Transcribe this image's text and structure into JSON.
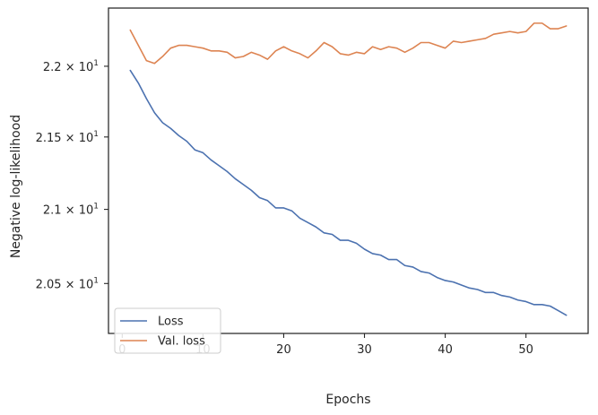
{
  "chart_data": {
    "type": "line",
    "title": "",
    "xlabel": "Epochs",
    "ylabel": "Negative log-likelihood",
    "y_scale": "log",
    "xlim": [
      -1.7,
      57.7
    ],
    "ylim": [
      20.17,
      22.42
    ],
    "x_ticks": [
      {
        "value": 0,
        "label": "0"
      },
      {
        "value": 10,
        "label": "10"
      },
      {
        "value": 20,
        "label": "20"
      },
      {
        "value": 30,
        "label": "30"
      },
      {
        "value": 40,
        "label": "40"
      },
      {
        "value": 50,
        "label": "50"
      }
    ],
    "y_ticks": [
      {
        "value": 22.0,
        "base": "2.2",
        "exp": "1"
      },
      {
        "value": 21.5,
        "base": "2.15",
        "exp": "1"
      },
      {
        "value": 21.0,
        "base": "2.1",
        "exp": "1"
      },
      {
        "value": 20.5,
        "base": "2.05",
        "exp": "1"
      }
    ],
    "tick_times_sign": "×",
    "tick_base_text": "10",
    "grid": false,
    "legend_position": "lower-left",
    "x": [
      1,
      2,
      3,
      4,
      5,
      6,
      7,
      8,
      9,
      10,
      11,
      12,
      13,
      14,
      15,
      16,
      17,
      18,
      19,
      20,
      21,
      22,
      23,
      24,
      25,
      26,
      27,
      28,
      29,
      30,
      31,
      32,
      33,
      34,
      35,
      36,
      37,
      38,
      39,
      40,
      41,
      42,
      43,
      44,
      45,
      46,
      47,
      48,
      49,
      50,
      51,
      52,
      53,
      54,
      55
    ],
    "series": [
      {
        "name": "Loss",
        "color": "#4c72b0",
        "values": [
          21.97,
          21.88,
          21.77,
          21.67,
          21.6,
          21.56,
          21.51,
          21.47,
          21.41,
          21.39,
          21.34,
          21.3,
          21.26,
          21.21,
          21.17,
          21.13,
          21.08,
          21.06,
          21.01,
          21.01,
          20.99,
          20.94,
          20.91,
          20.88,
          20.84,
          20.83,
          20.79,
          20.79,
          20.77,
          20.73,
          20.7,
          20.69,
          20.66,
          20.66,
          20.62,
          20.61,
          20.58,
          20.57,
          20.54,
          20.52,
          20.51,
          20.49,
          20.47,
          20.46,
          20.44,
          20.44,
          20.42,
          20.41,
          20.39,
          20.38,
          20.36,
          20.36,
          20.35,
          20.32,
          20.29
        ]
      },
      {
        "name": "Val. loss",
        "color": "#dd8452",
        "values": [
          22.26,
          22.15,
          22.04,
          22.02,
          22.07,
          22.13,
          22.15,
          22.15,
          22.14,
          22.13,
          22.11,
          22.11,
          22.1,
          22.06,
          22.07,
          22.1,
          22.08,
          22.05,
          22.11,
          22.14,
          22.11,
          22.09,
          22.06,
          22.11,
          22.17,
          22.14,
          22.09,
          22.08,
          22.1,
          22.09,
          22.14,
          22.12,
          22.14,
          22.13,
          22.1,
          22.13,
          22.17,
          22.17,
          22.15,
          22.13,
          22.18,
          22.17,
          22.18,
          22.19,
          22.2,
          22.23,
          22.24,
          22.25,
          22.24,
          22.25,
          22.31,
          22.31,
          22.27,
          22.27,
          22.29
        ]
      }
    ]
  }
}
